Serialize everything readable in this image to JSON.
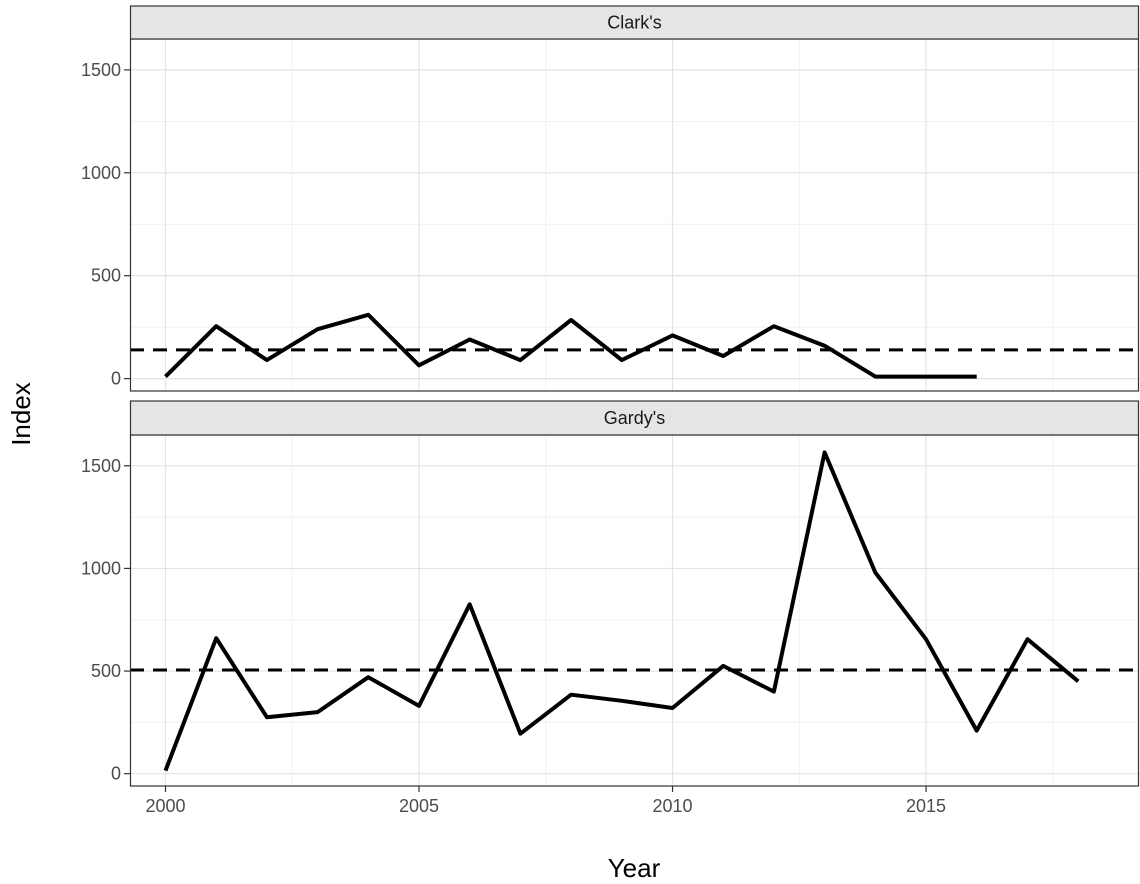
{
  "chart_data": {
    "type": "line",
    "title": "",
    "xlabel": "Year",
    "ylabel": "Index",
    "xlim": [
      1999.3,
      2019.2
    ],
    "ylim": [
      -60,
      1650
    ],
    "x_ticks": [
      2000,
      2005,
      2010,
      2015
    ],
    "x_tick_labels": [
      "2000",
      "2005",
      "2010",
      "2015"
    ],
    "y_ticks": [
      0,
      500,
      1000,
      1500
    ],
    "y_tick_labels": [
      "0",
      "500",
      "1000",
      "1500"
    ],
    "grid": true,
    "legend": "none",
    "line_color": "#000000",
    "panels": [
      {
        "label": "Clark's",
        "reference_line": 140,
        "series": [
          {
            "x": [
              2000,
              2001,
              2002,
              2003,
              2004,
              2005,
              2006,
              2007,
              2008,
              2009,
              2010,
              2011,
              2012,
              2013,
              2014,
              2015,
              2016
            ],
            "values": [
              10,
              255,
              90,
              240,
              310,
              65,
              190,
              90,
              285,
              90,
              210,
              110,
              255,
              160,
              10,
              10,
              10
            ]
          }
        ]
      },
      {
        "label": "Gardy's",
        "reference_line": 505,
        "series": [
          {
            "x": [
              2000,
              2001,
              2002,
              2003,
              2004,
              2005,
              2006,
              2007,
              2008,
              2009,
              2010,
              2011,
              2012,
              2013,
              2014,
              2015,
              2016,
              2017,
              2018
            ],
            "values": [
              15,
              660,
              275,
              300,
              470,
              330,
              825,
              195,
              385,
              355,
              320,
              525,
              400,
              1565,
              980,
              655,
              210,
              655,
              450
            ]
          }
        ]
      }
    ]
  }
}
